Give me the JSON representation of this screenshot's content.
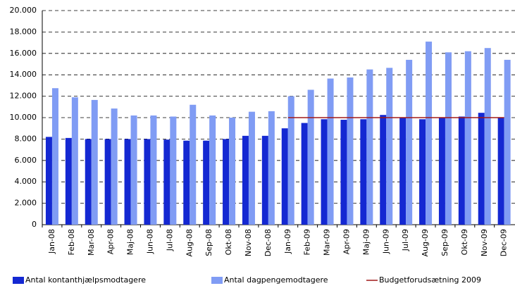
{
  "chart_data": {
    "type": "bar",
    "categories": [
      "Jan-08",
      "Feb-08",
      "Mar-08",
      "Apr-08",
      "Maj-08",
      "Jun-08",
      "Jul-08",
      "Aug-08",
      "Sep-08",
      "Okt-08",
      "Nov-08",
      "Dec-08",
      "Jan-09",
      "Feb-09",
      "Mar-09",
      "Apr-09",
      "Maj-09",
      "Jun-09",
      "Jul-09",
      "Aug-09",
      "Sep-09",
      "Okt-09",
      "Nov-09",
      "Dec-09"
    ],
    "series": [
      {
        "name": "Antal kontanthjælpsmodtagere",
        "color": "#1428d2",
        "values": [
          8200,
          8100,
          8000,
          8000,
          8000,
          8000,
          7950,
          7850,
          7850,
          8000,
          8300,
          8300,
          9000,
          9500,
          9850,
          9800,
          9850,
          10250,
          10000,
          9850,
          10000,
          10100,
          10450,
          10000
        ]
      },
      {
        "name": "Antal dagpengemodtagere",
        "color": "#809cf4",
        "values": [
          12750,
          11900,
          11650,
          10850,
          10200,
          10200,
          10100,
          11200,
          10200,
          10000,
          10550,
          10600,
          12000,
          12600,
          13650,
          13750,
          14500,
          14650,
          15400,
          17100,
          16100,
          16200,
          16500,
          15400
        ]
      },
      {
        "name": "Budgetforudsætning 2009",
        "type": "line",
        "color": "#a01818",
        "values": [
          null,
          null,
          null,
          null,
          null,
          null,
          null,
          null,
          null,
          null,
          null,
          null,
          10000,
          10000,
          10000,
          10000,
          10000,
          10000,
          10000,
          10000,
          10000,
          10000,
          10000,
          10000
        ]
      }
    ],
    "ylim": [
      0,
      20000
    ],
    "yticks": [
      0,
      {
        "value": 2000,
        "label": "2.000"
      },
      {
        "value": 4000,
        "label": "4.000"
      },
      {
        "value": 6000,
        "label": "6.000"
      },
      {
        "value": 8000,
        "label": "8.000"
      },
      {
        "value": 10000,
        "label": "10.000"
      },
      {
        "value": 12000,
        "label": "12.000"
      },
      {
        "value": 14000,
        "label": "14.000"
      },
      {
        "value": 16000,
        "label": "16.000"
      },
      {
        "value": 18000,
        "label": "18.000"
      },
      {
        "value": 20000,
        "label": "20.000"
      }
    ],
    "grid": true
  }
}
